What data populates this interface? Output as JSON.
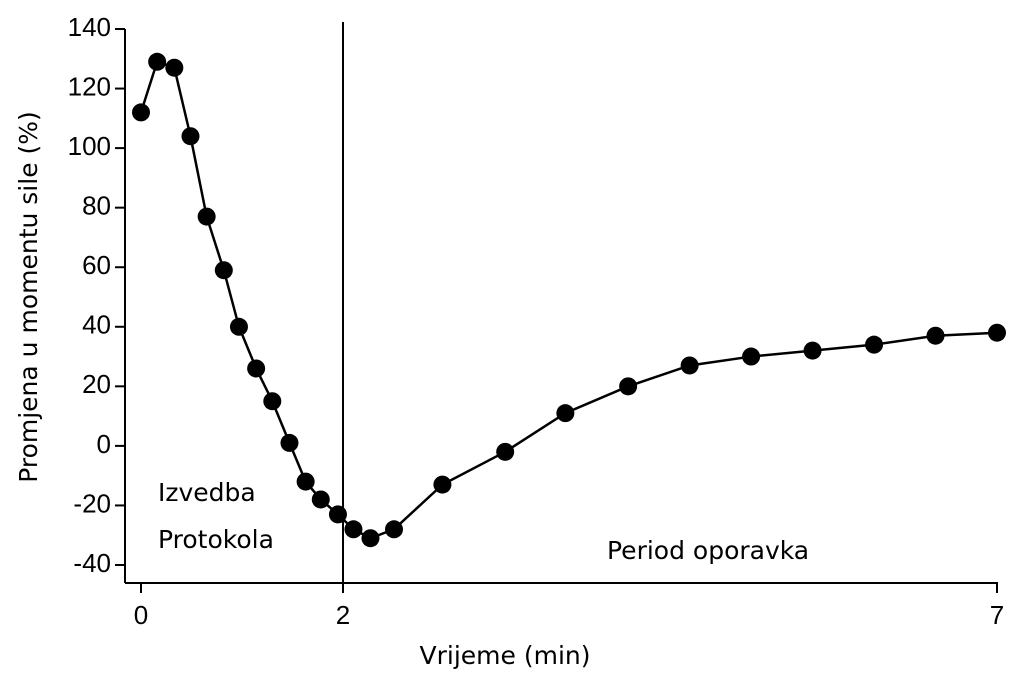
{
  "chart_data": {
    "type": "line",
    "x_label": "Vrijeme (min)",
    "y_label": "Promjena u momentu sile (%)",
    "annotations": [
      [
        "Izvedba",
        "Protokola"
      ],
      [
        "Period oporavka"
      ]
    ],
    "x": [
      0,
      0.16,
      0.33,
      0.49,
      0.65,
      0.82,
      0.97,
      1.14,
      1.3,
      1.47,
      1.63,
      1.78,
      1.95,
      2.08,
      2.21,
      2.39,
      2.76,
      3.24,
      3.7,
      4.18,
      4.65,
      5.12,
      5.59,
      6.06,
      6.53,
      7
    ],
    "series": [
      {
        "color": "#000000",
        "values": [
          112,
          129,
          127,
          104,
          77,
          59,
          40,
          26,
          15,
          1,
          -12,
          -18,
          -23,
          -28,
          -31,
          -28,
          -13,
          -2,
          11,
          20,
          27,
          30,
          32,
          34,
          37,
          38
        ]
      }
    ],
    "xlim": [
      0,
      7
    ],
    "xticks": [
      0,
      2,
      7
    ],
    "ylim": [
      -40,
      140
    ],
    "yticks": [
      -40,
      -20,
      0,
      20,
      40,
      60,
      80,
      100,
      120,
      140
    ]
  }
}
